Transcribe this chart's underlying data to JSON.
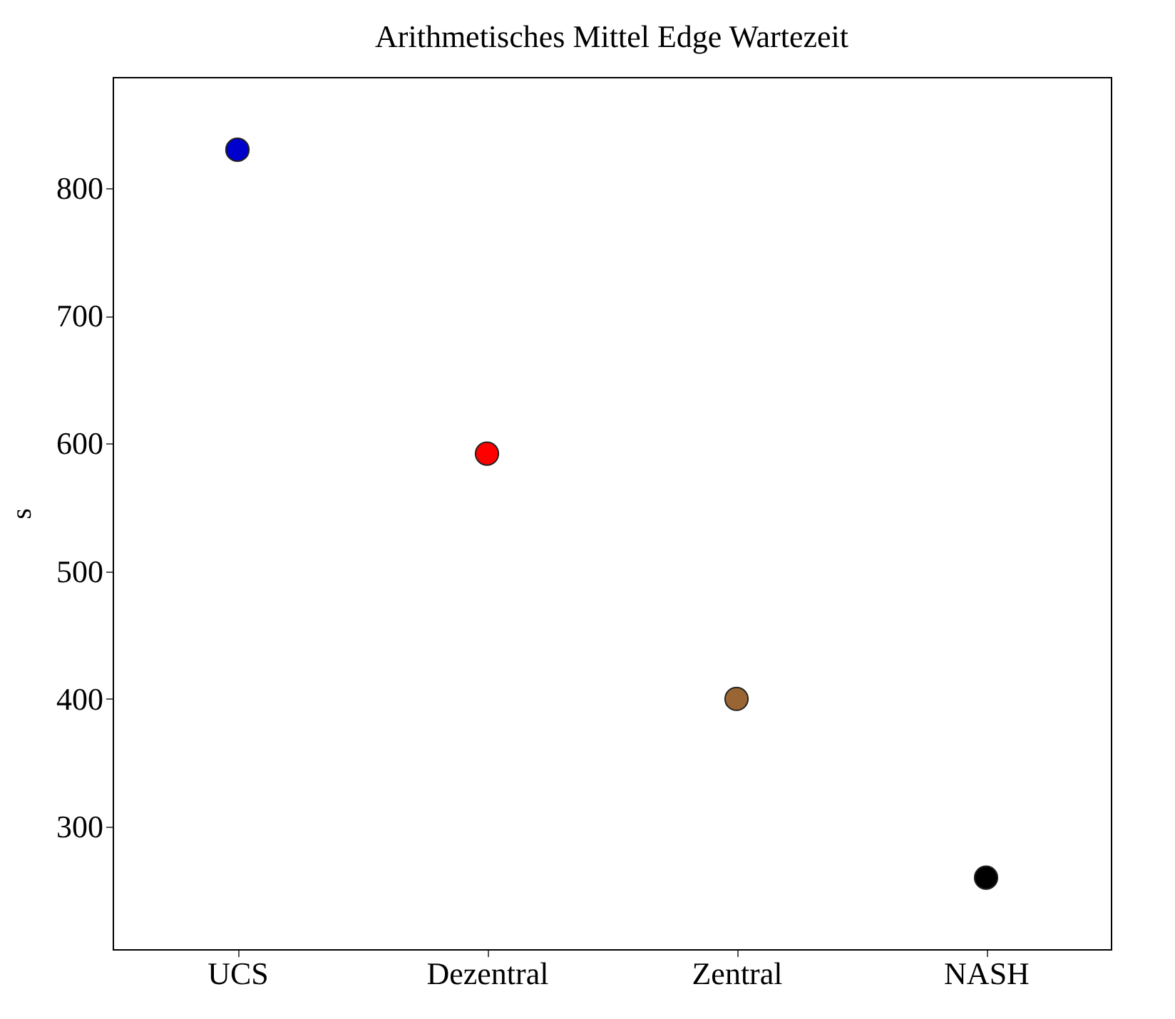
{
  "chart_data": {
    "type": "scatter",
    "title": "Arithmetisches Mittel Edge Wartezeit",
    "ylabel": "s",
    "categories": [
      "UCS",
      "Dezentral",
      "Zentral",
      "NASH"
    ],
    "values": [
      830,
      592,
      400,
      260
    ],
    "colors": [
      "#0000cc",
      "#ff0000",
      "#996633",
      "#000000"
    ],
    "ylim": [
      204,
      887
    ],
    "yticks": [
      300,
      400,
      500,
      600,
      700,
      800
    ],
    "grid": false,
    "marker": "circle"
  }
}
